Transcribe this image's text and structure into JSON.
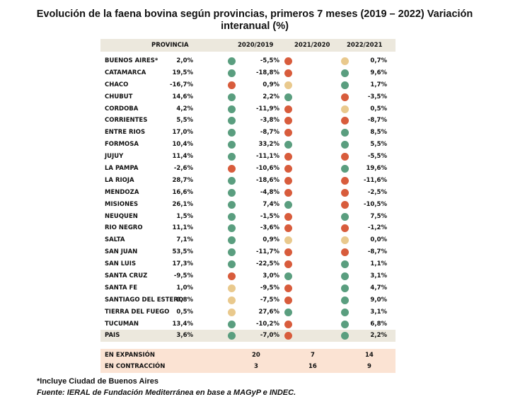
{
  "title": "Evolución de la faena bovina según provincias, primeros 7 meses (2019 – 2022) Variación interanual (%)",
  "colors": {
    "green": "#5a9e7f",
    "red": "#d85c3c",
    "yellow": "#e9c98d",
    "header_bg": "#ece8dd",
    "summary_bg": "#fbe3d3"
  },
  "headers": [
    "PROVINCIA",
    "2020/2019",
    "2021/2020",
    "2022/2021"
  ],
  "rows": [
    {
      "name": "BUENOS AIRES*",
      "v": [
        "2,0%",
        "-5,5%",
        "0,7%"
      ],
      "c": [
        "green",
        "red",
        "yellow"
      ]
    },
    {
      "name": "CATAMARCA",
      "v": [
        "19,5%",
        "-18,8%",
        "9,6%"
      ],
      "c": [
        "green",
        "red",
        "green"
      ]
    },
    {
      "name": "CHACO",
      "v": [
        "-16,7%",
        "0,9%",
        "1,7%"
      ],
      "c": [
        "red",
        "yellow",
        "green"
      ]
    },
    {
      "name": "CHUBUT",
      "v": [
        "14,6%",
        "2,2%",
        "-3,5%"
      ],
      "c": [
        "green",
        "green",
        "red"
      ]
    },
    {
      "name": "CORDOBA",
      "v": [
        "4,2%",
        "-11,9%",
        "0,5%"
      ],
      "c": [
        "green",
        "red",
        "yellow"
      ]
    },
    {
      "name": "CORRIENTES",
      "v": [
        "5,5%",
        "-3,8%",
        "-8,7%"
      ],
      "c": [
        "green",
        "red",
        "red"
      ]
    },
    {
      "name": "ENTRE RIOS",
      "v": [
        "17,0%",
        "-8,7%",
        "8,5%"
      ],
      "c": [
        "green",
        "red",
        "green"
      ]
    },
    {
      "name": "FORMOSA",
      "v": [
        "10,4%",
        "33,2%",
        "5,5%"
      ],
      "c": [
        "green",
        "green",
        "green"
      ]
    },
    {
      "name": "JUJUY",
      "v": [
        "11,4%",
        "-11,1%",
        "-5,5%"
      ],
      "c": [
        "green",
        "red",
        "red"
      ]
    },
    {
      "name": "LA PAMPA",
      "v": [
        "-2,6%",
        "-10,6%",
        "19,6%"
      ],
      "c": [
        "red",
        "red",
        "green"
      ]
    },
    {
      "name": "LA RIOJA",
      "v": [
        "28,7%",
        "-18,6%",
        "-11,6%"
      ],
      "c": [
        "green",
        "red",
        "red"
      ]
    },
    {
      "name": "MENDOZA",
      "v": [
        "16,6%",
        "-4,8%",
        "-2,5%"
      ],
      "c": [
        "green",
        "red",
        "red"
      ]
    },
    {
      "name": "MISIONES",
      "v": [
        "26,1%",
        "7,4%",
        "-10,5%"
      ],
      "c": [
        "green",
        "green",
        "red"
      ]
    },
    {
      "name": "NEUQUEN",
      "v": [
        "1,5%",
        "-1,5%",
        "7,5%"
      ],
      "c": [
        "green",
        "red",
        "green"
      ]
    },
    {
      "name": "RIO NEGRO",
      "v": [
        "11,1%",
        "-3,6%",
        "-1,2%"
      ],
      "c": [
        "green",
        "red",
        "red"
      ]
    },
    {
      "name": "SALTA",
      "v": [
        "7,1%",
        "0,9%",
        "0,0%"
      ],
      "c": [
        "green",
        "yellow",
        "yellow"
      ]
    },
    {
      "name": "SAN JUAN",
      "v": [
        "53,5%",
        "-11,7%",
        "-8,7%"
      ],
      "c": [
        "green",
        "red",
        "red"
      ]
    },
    {
      "name": "SAN LUIS",
      "v": [
        "17,3%",
        "-22,5%",
        "1,1%"
      ],
      "c": [
        "green",
        "red",
        "green"
      ]
    },
    {
      "name": "SANTA CRUZ",
      "v": [
        "-9,5%",
        "3,0%",
        "3,1%"
      ],
      "c": [
        "red",
        "green",
        "green"
      ]
    },
    {
      "name": "SANTA FE",
      "v": [
        "1,0%",
        "-9,5%",
        "4,7%"
      ],
      "c": [
        "yellow",
        "red",
        "green"
      ]
    },
    {
      "name": "SANTIAGO DEL ESTERO",
      "v": [
        "0,8%",
        "-7,5%",
        "9,0%"
      ],
      "c": [
        "yellow",
        "red",
        "green"
      ]
    },
    {
      "name": "TIERRA DEL FUEGO",
      "v": [
        "0,5%",
        "27,6%",
        "3,1%"
      ],
      "c": [
        "yellow",
        "green",
        "green"
      ]
    },
    {
      "name": "TUCUMAN",
      "v": [
        "13,4%",
        "-10,2%",
        "6,8%"
      ],
      "c": [
        "green",
        "red",
        "green"
      ]
    },
    {
      "name": "PAIS",
      "v": [
        "3,6%",
        "-7,0%",
        "2,2%"
      ],
      "c": [
        "green",
        "red",
        "green"
      ],
      "total": true
    }
  ],
  "summary": [
    {
      "label": "EN EXPANSIÓN",
      "v": [
        "20",
        "7",
        "14"
      ]
    },
    {
      "label": "EN CONTRACCIÓN",
      "v": [
        "3",
        "16",
        "9"
      ]
    }
  ],
  "note": "*Incluye Ciudad de Buenos Aires",
  "source": "Fuente: IERAL de Fundación Mediterránea en base a MAGyP e INDEC."
}
